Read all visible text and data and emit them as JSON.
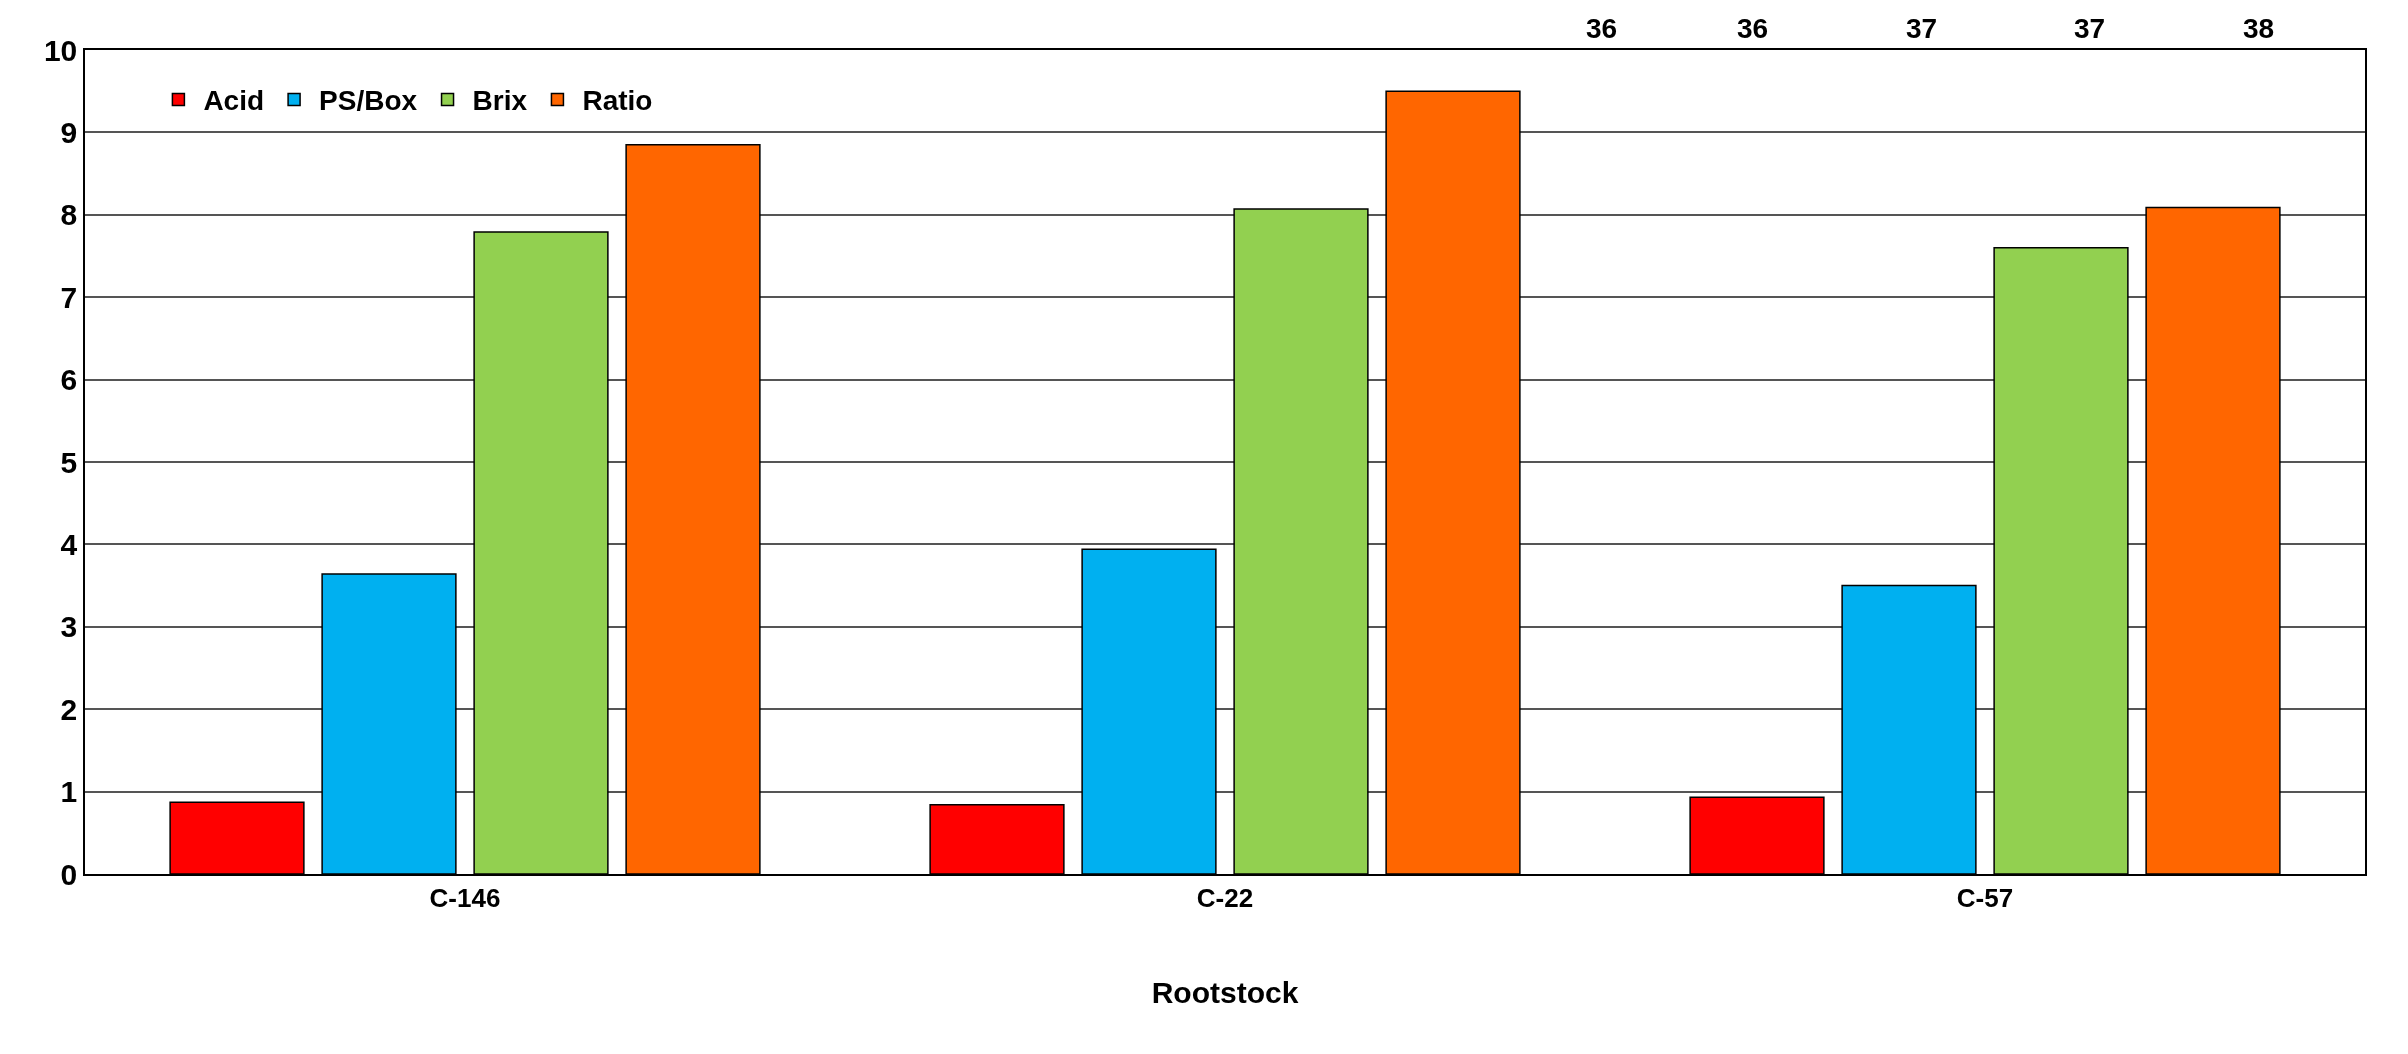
{
  "chart_data": {
    "type": "bar",
    "xlabel": "Rootstock",
    "categories": [
      "C-146",
      "C-22",
      "C-57"
    ],
    "series": [
      {
        "name": "Acid",
        "color": "#ff0000",
        "values": [
          0.87,
          0.84,
          0.93
        ]
      },
      {
        "name": "PS/Box",
        "color": "#00b0f0",
        "values": [
          3.64,
          3.94,
          3.5
        ]
      },
      {
        "name": "Brix",
        "color": "#92d050",
        "values": [
          7.79,
          8.07,
          7.6
        ]
      },
      {
        "name": "Ratio",
        "color": "#ff6600",
        "values": [
          8.85,
          9.5,
          8.09
        ]
      }
    ],
    "ylim": [
      0,
      10
    ],
    "yticks": [
      0,
      1,
      2,
      3,
      4,
      5,
      6,
      7,
      8,
      9,
      10
    ],
    "grid": "y",
    "legend": "top left",
    "annotations": [
      "36",
      "36",
      "37",
      "37",
      "38"
    ]
  }
}
